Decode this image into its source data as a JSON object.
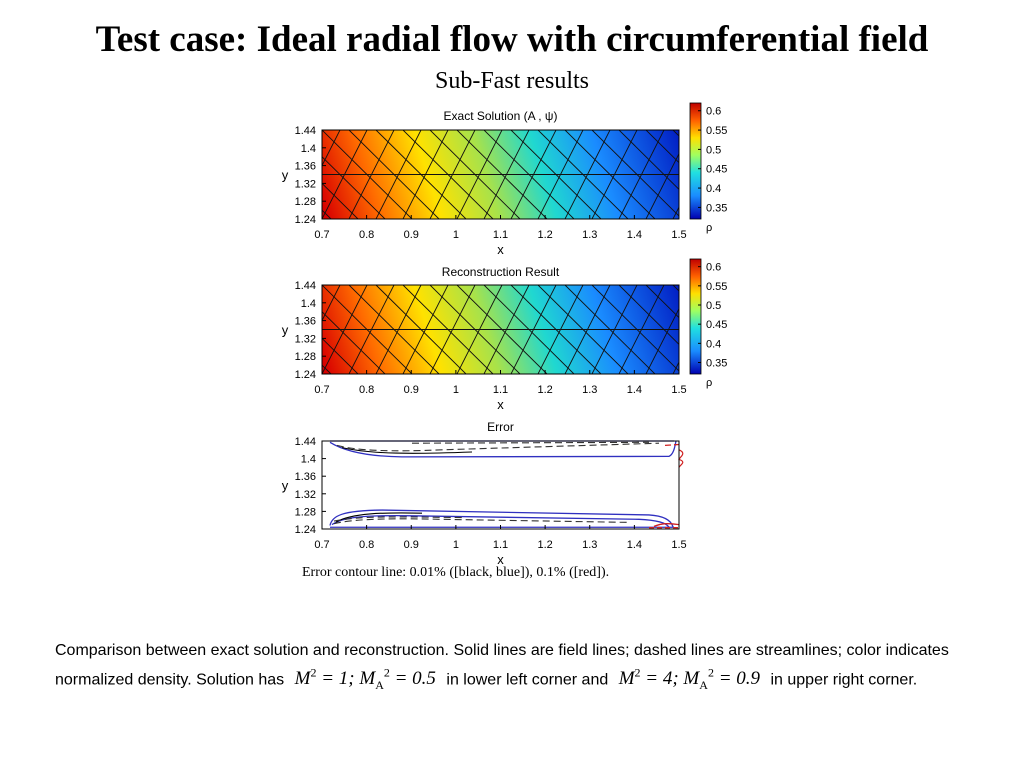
{
  "page": {
    "title": "Test case: Ideal radial flow with circumferential field",
    "subtitle": "Sub-Fast results"
  },
  "caption": "Error contour line: 0.01% ([black, blue]), 0.1% ([red]).",
  "description": {
    "part1": "Comparison between exact solution and reconstruction. Solid lines are field lines; dashed lines are streamlines; color indicates normalized density.  Solution has",
    "math1": "M² = 1; M_A² = 0.5",
    "part2": "in lower left corner and",
    "math2": "M² = 4; M_A² = 0.9",
    "part3": "in upper right corner."
  },
  "colors": {
    "low": "#0000c8",
    "mid": "#ffff00",
    "high": "#e00000",
    "error_black": "#000000",
    "error_blue": "#3030c0",
    "error_red": "#d02020"
  },
  "chart_data": [
    {
      "type": "heatmap",
      "title": "Exact Solution (A , ψ)",
      "xlabel": "x",
      "ylabel": "y",
      "xlim": [
        0.7,
        1.5
      ],
      "ylim": [
        1.24,
        1.44
      ],
      "xticks": [
        "0.7",
        "0.8",
        "0.9",
        "1",
        "1.1",
        "1.2",
        "1.3",
        "1.4",
        "1.5"
      ],
      "yticks": [
        "1.24",
        "1.28",
        "1.32",
        "1.36",
        "1.4",
        "1.44"
      ],
      "colorbar": {
        "label": "ρ",
        "range": [
          0.32,
          0.62
        ],
        "ticks": [
          "0.6",
          "0.55",
          "0.5",
          "0.45",
          "0.4",
          "0.35"
        ]
      },
      "field": "normalized density, decreasing from ~0.62 at lower left (x=0.7, y=1.24) to ~0.32 at upper right (x=1.5, y=1.44)"
    },
    {
      "type": "heatmap",
      "title": "Reconstruction Result",
      "xlabel": "x",
      "ylabel": "y",
      "xlim": [
        0.7,
        1.5
      ],
      "ylim": [
        1.24,
        1.44
      ],
      "xticks": [
        "0.7",
        "0.8",
        "0.9",
        "1",
        "1.1",
        "1.2",
        "1.3",
        "1.4",
        "1.5"
      ],
      "yticks": [
        "1.24",
        "1.28",
        "1.32",
        "1.36",
        "1.4",
        "1.44"
      ],
      "colorbar": {
        "label": "ρ",
        "range": [
          0.32,
          0.62
        ],
        "ticks": [
          "0.6",
          "0.55",
          "0.5",
          "0.45",
          "0.4",
          "0.35"
        ]
      },
      "field": "normalized density, decreasing from ~0.62 at lower left to ~0.32 at upper right"
    },
    {
      "type": "line",
      "title": "Error",
      "xlabel": "x",
      "ylabel": "y",
      "xlim": [
        0.7,
        1.5
      ],
      "ylim": [
        1.24,
        1.44
      ],
      "xticks": [
        "0.7",
        "0.8",
        "0.9",
        "1",
        "1.1",
        "1.2",
        "1.3",
        "1.4",
        "1.5"
      ],
      "yticks": [
        "1.24",
        "1.28",
        "1.32",
        "1.36",
        "1.4",
        "1.44"
      ],
      "description": "error contours concentrated near y=1.24-1.29 and y=1.40-1.44 boundaries"
    }
  ]
}
